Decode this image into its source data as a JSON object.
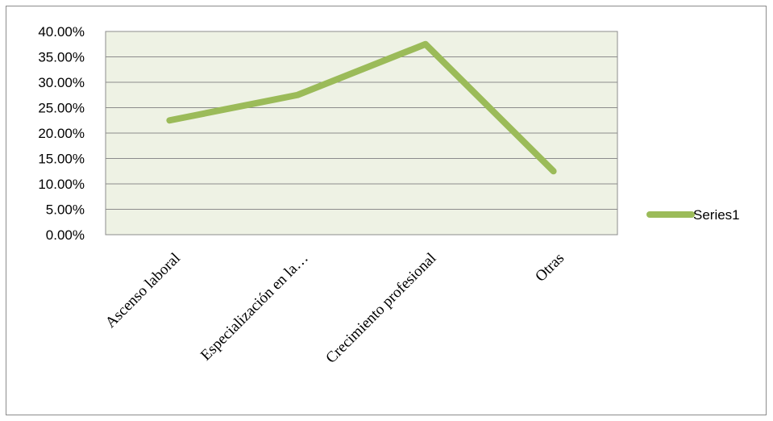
{
  "chart_data": {
    "type": "line",
    "title": "",
    "xlabel": "",
    "ylabel": "",
    "categories": [
      "Ascenso laboral",
      "Especialización en la…",
      "Crecimiento profesional",
      "Otras"
    ],
    "series": [
      {
        "name": "Series1",
        "values": [
          22.5,
          27.5,
          37.5,
          12.5
        ]
      }
    ],
    "y_ticks": [
      "0.00%",
      "5.00%",
      "10.00%",
      "15.00%",
      "20.00%",
      "25.00%",
      "30.00%",
      "35.00%",
      "40.00%"
    ],
    "ylim": [
      0,
      40
    ],
    "y_unit": "%",
    "grid": true,
    "legend_position": "right",
    "colors": {
      "series_line": "#9bbb59",
      "plot_background": "#eef2e4",
      "gridline": "#8c8c8c",
      "frame": "#8c8c8c"
    }
  }
}
